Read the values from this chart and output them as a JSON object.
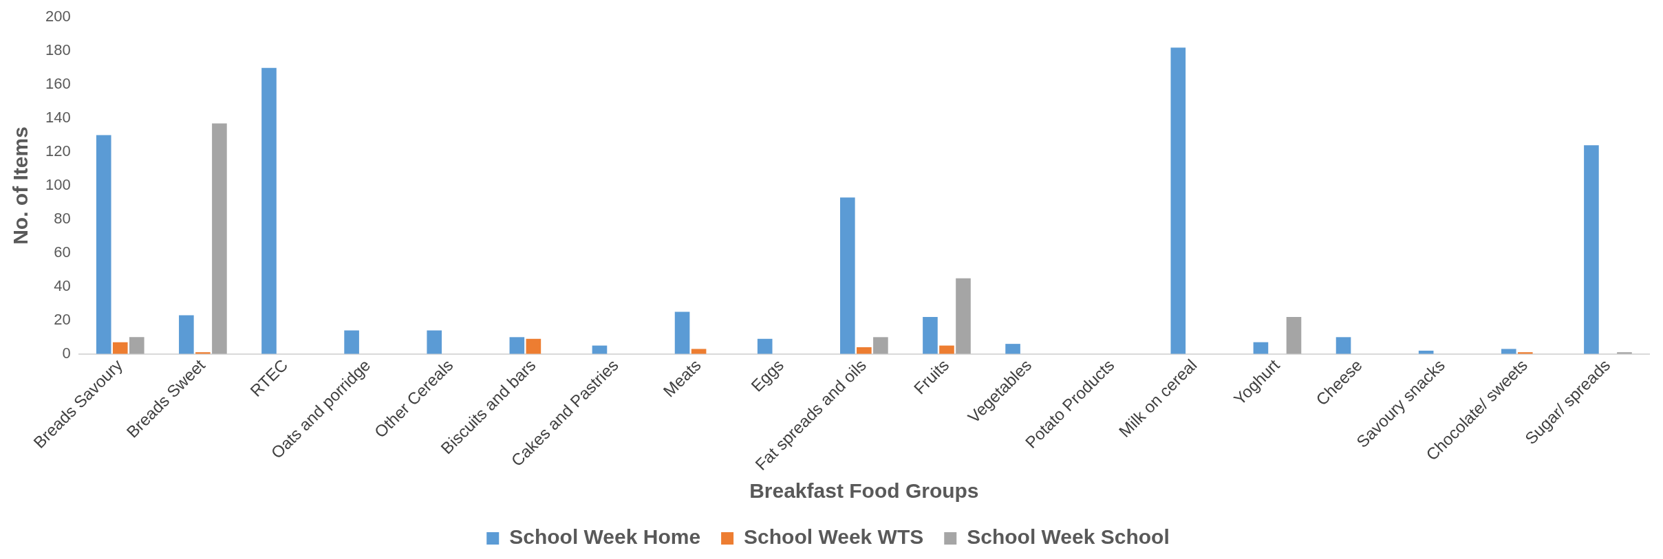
{
  "chart_data": {
    "type": "bar",
    "xlabel": "Breakfast Food Groups",
    "ylabel": "No. of Items",
    "categories": [
      "Breads Savoury",
      "Breads Sweet",
      "RTEC",
      "Oats and porridge",
      "Other Cereals",
      "Biscuits and bars",
      "Cakes and Pastries",
      "Meats",
      "Eggs",
      "Fat spreads and oils",
      "Fruits",
      "Vegetables",
      "Potato Products",
      "Milk on cereal",
      "Yoghurt",
      "Cheese",
      "Savoury snacks",
      "Chocolate/ sweets",
      "Sugar/ spreads"
    ],
    "series": [
      {
        "name": "School Week Home",
        "color": "#5b9bd5",
        "values": [
          130,
          23,
          170,
          14,
          14,
          10,
          5,
          25,
          9,
          93,
          22,
          6,
          0,
          182,
          7,
          10,
          2,
          3,
          124
        ]
      },
      {
        "name": "School Week WTS",
        "color": "#ed7d31",
        "values": [
          7,
          1,
          0,
          0,
          0,
          9,
          0,
          3,
          0,
          4,
          5,
          0,
          0,
          0,
          0,
          0,
          0,
          1,
          0
        ]
      },
      {
        "name": "School Week School",
        "color": "#a5a5a5",
        "values": [
          10,
          137,
          0,
          0,
          0,
          0,
          0,
          0,
          0,
          10,
          45,
          0,
          0,
          0,
          22,
          0,
          0,
          0,
          1
        ]
      }
    ],
    "ylim": [
      0,
      200
    ],
    "yticks": [
      0,
      20,
      40,
      60,
      80,
      100,
      120,
      140,
      160,
      180,
      200
    ],
    "grid": false,
    "legend": "bottom"
  }
}
